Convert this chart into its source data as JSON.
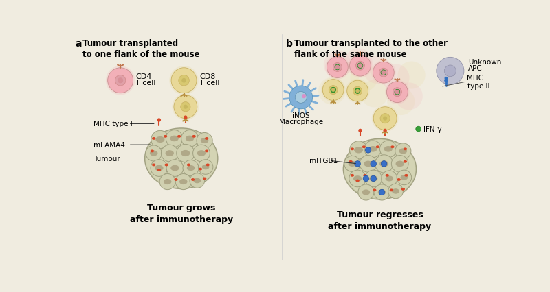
{
  "bg_color": "#f0ece0",
  "title_a": "Tumour transplanted\nto one flank of the mouse",
  "title_b": "Tumour transplanted to the other\nflank of the same mouse",
  "label_a": "a",
  "label_b": "b",
  "bottom_a": "Tumour grows\nafter immunotherapy",
  "bottom_b": "Tumour regresses\nafter immunotherapy",
  "cd4_color": "#f2b0b8",
  "cd4_inner": "#e89098",
  "cd8_color": "#e8d898",
  "cd8_inner": "#d8c878",
  "apc_color": "#c0c0d0",
  "apc_inner": "#b0b0c8",
  "macrophage_color": "#80b0d8",
  "macrophage_inner": "#a8cce0",
  "tumour_bg": "#d4d4b8",
  "tumour_cell": "#d0d0b8",
  "tumour_nucleus": "#b0a888",
  "tumour_edge": "#a8a880",
  "mhc1_color": "#d84828",
  "mhc2_color": "#3070c0",
  "ifng_color": "#38a038",
  "receptor_color_cd4": "#c07850",
  "receptor_color_cd8": "#b89040"
}
